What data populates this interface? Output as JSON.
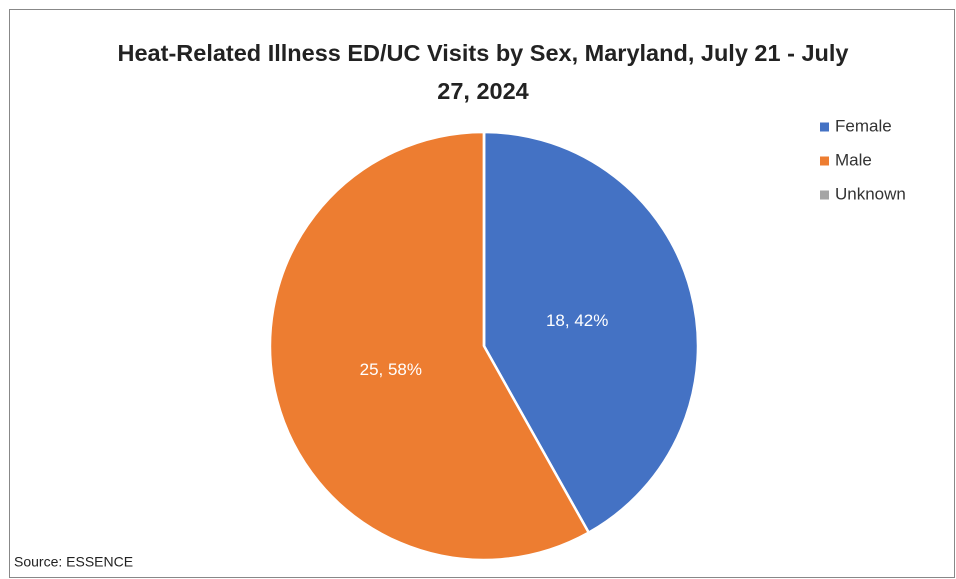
{
  "chart_data": {
    "type": "pie",
    "title": "Heat-Related Illness ED/UC Visits by Sex, Maryland, July 21 - July 27, 2024",
    "categories": [
      "Female",
      "Male",
      "Unknown"
    ],
    "values": [
      18,
      25,
      0
    ],
    "value_labels": [
      "18, 42%",
      "25, 58%",
      null
    ],
    "colors": [
      "#4472c4",
      "#ed7d31",
      "#a5a5a5"
    ],
    "legend": "right",
    "annotation": "Source: ESSENCE"
  }
}
